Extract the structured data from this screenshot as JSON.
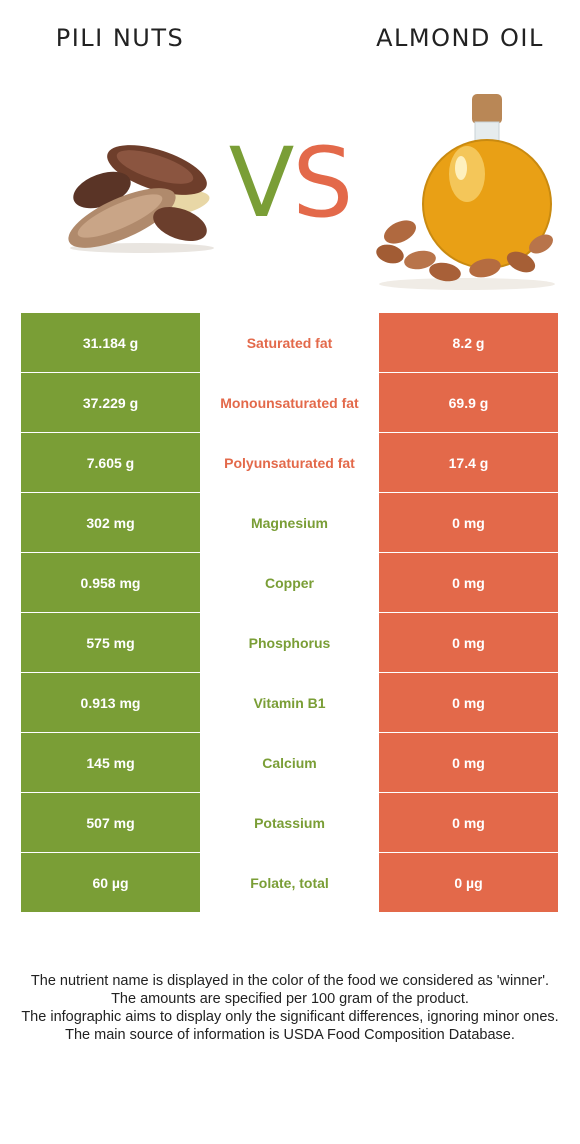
{
  "left_food": {
    "name": "PILI NUTS",
    "color": "#7a9e36",
    "image": "pili-nuts-image"
  },
  "right_food": {
    "name": "ALMOND OIL",
    "color": "#e3694a",
    "image": "almond-oil-image"
  },
  "vs": {
    "v": "V",
    "s": "S"
  },
  "rows": [
    {
      "left": "31.184 g",
      "nutrient": "Saturated fat",
      "right": "8.2 g",
      "winner": "right"
    },
    {
      "left": "37.229 g",
      "nutrient": "Monounsaturated fat",
      "right": "69.9 g",
      "winner": "right"
    },
    {
      "left": "7.605 g",
      "nutrient": "Polyunsaturated fat",
      "right": "17.4 g",
      "winner": "right"
    },
    {
      "left": "302 mg",
      "nutrient": "Magnesium",
      "right": "0 mg",
      "winner": "left"
    },
    {
      "left": "0.958 mg",
      "nutrient": "Copper",
      "right": "0 mg",
      "winner": "left"
    },
    {
      "left": "575 mg",
      "nutrient": "Phosphorus",
      "right": "0 mg",
      "winner": "left"
    },
    {
      "left": "0.913 mg",
      "nutrient": "Vitamin B1",
      "right": "0 mg",
      "winner": "left"
    },
    {
      "left": "145 mg",
      "nutrient": "Calcium",
      "right": "0 mg",
      "winner": "left"
    },
    {
      "left": "507 mg",
      "nutrient": "Potassium",
      "right": "0 mg",
      "winner": "left"
    },
    {
      "left": "60 µg",
      "nutrient": "Folate, total",
      "right": "0 µg",
      "winner": "left"
    }
  ],
  "footer": [
    "The nutrient name is displayed in the color of the food we considered as 'winner'.",
    "The amounts are specified per 100 gram of the product.",
    "The infographic aims to display only the significant differences, ignoring minor ones.",
    "The main source of information is USDA Food Composition Database."
  ]
}
